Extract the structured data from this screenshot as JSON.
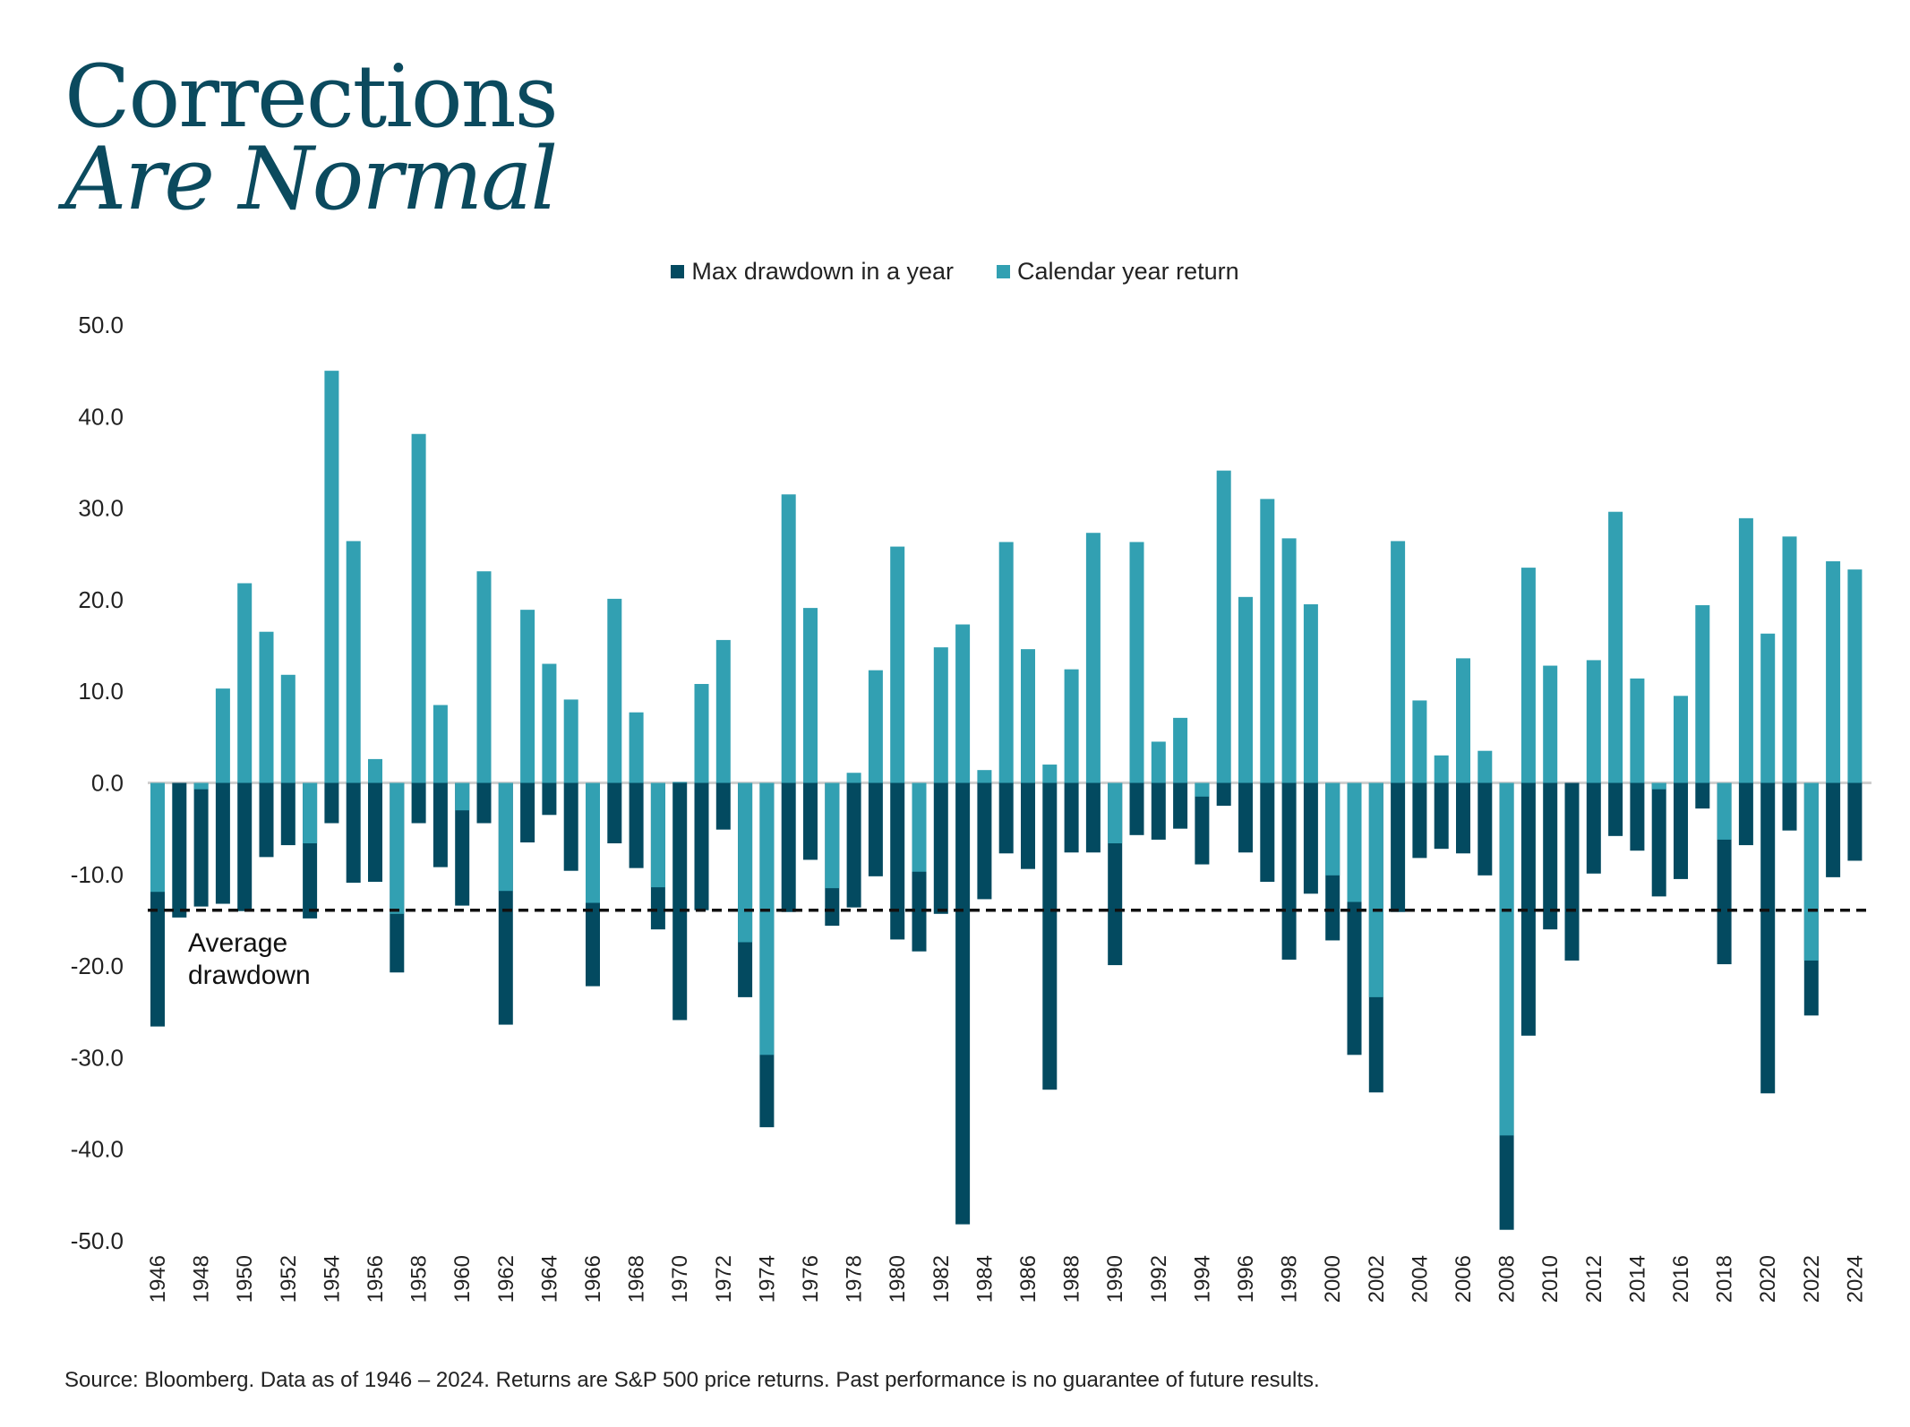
{
  "title": {
    "line1": "Corrections",
    "line2": "Are Normal"
  },
  "legend": {
    "drawdown_label": "Max drawdown in a year",
    "return_label": "Calendar year return"
  },
  "colors": {
    "drawdown": "#034a60",
    "return": "#32a0b2",
    "zero_line": "#cfcfcf",
    "avg_line": "#111111"
  },
  "annotation": {
    "line1": "Average",
    "line2": "drawdown"
  },
  "source": "Source: Bloomberg. Data as of 1946 – 2024.  Returns are S&P 500 price returns.    Past performance is no guarantee of future results.",
  "chart_data": {
    "type": "bar",
    "ylim": [
      -50,
      50
    ],
    "yticks": [
      "50.0",
      "40.0",
      "30.0",
      "20.0",
      "10.0",
      "0.0",
      "-10.0",
      "-20.0",
      "-30.0",
      "-40.0",
      "-50.0"
    ],
    "average_drawdown": -13.9,
    "x": [
      1946,
      1947,
      1948,
      1949,
      1950,
      1951,
      1952,
      1953,
      1954,
      1955,
      1956,
      1957,
      1958,
      1959,
      1960,
      1961,
      1962,
      1963,
      1964,
      1965,
      1966,
      1967,
      1968,
      1969,
      1970,
      1971,
      1972,
      1973,
      1974,
      1975,
      1976,
      1977,
      1978,
      1979,
      1980,
      1981,
      1982,
      1983,
      1984,
      1985,
      1986,
      1987,
      1988,
      1989,
      1990,
      1991,
      1992,
      1993,
      1994,
      1995,
      1996,
      1997,
      1998,
      1999,
      2000,
      2001,
      2002,
      2003,
      2004,
      2005,
      2006,
      2007,
      2008,
      2009,
      2010,
      2011,
      2012,
      2013,
      2014,
      2015,
      2016,
      2017,
      2018,
      2019,
      2020,
      2021,
      2022,
      2023,
      2024
    ],
    "xtick_labels": [
      "1946",
      "1948",
      "1950",
      "1952",
      "1954",
      "1956",
      "1958",
      "1960",
      "1962",
      "1964",
      "1966",
      "1968",
      "1970",
      "1972",
      "1974",
      "1976",
      "1978",
      "1980",
      "1982",
      "1984",
      "1986",
      "1988",
      "1990",
      "1992",
      "1994",
      "1996",
      "1998",
      "2000",
      "2002",
      "2004",
      "2006",
      "2008",
      "2010",
      "2012",
      "2014",
      "2016",
      "2018",
      "2020",
      "2022",
      "2024"
    ],
    "series": [
      {
        "name": "Max drawdown in a year",
        "values": [
          -26.6,
          -14.7,
          -13.5,
          -13.2,
          -14.0,
          -8.1,
          -6.8,
          -14.8,
          -4.4,
          -10.9,
          -10.8,
          -20.7,
          -4.4,
          -9.2,
          -13.4,
          -4.4,
          -26.4,
          -6.5,
          -3.5,
          -9.6,
          -22.2,
          -6.6,
          -9.3,
          -16.0,
          -25.9,
          -13.9,
          -5.1,
          -23.4,
          -37.6,
          -14.1,
          -8.4,
          -15.6,
          -13.6,
          -10.2,
          -17.1,
          -18.4,
          -14.3,
          -48.2,
          -12.7,
          -7.7,
          -9.4,
          -33.5,
          -7.6,
          -7.6,
          -19.9,
          -5.7,
          -6.2,
          -5.0,
          -8.9,
          -2.5,
          -7.6,
          -10.8,
          -19.3,
          -12.1,
          -17.2,
          -29.7,
          -33.8,
          -14.1,
          -8.2,
          -7.2,
          -7.7,
          -10.1,
          -48.8,
          -27.6,
          -16.0,
          -19.4,
          -9.9,
          -5.8,
          -7.4,
          -12.4,
          -10.5,
          -2.8,
          -19.8,
          -6.8,
          -33.9,
          -5.2,
          -25.4,
          -10.3,
          -8.5
        ]
      },
      {
        "name": "Calendar year return",
        "values": [
          -11.9,
          0.0,
          -0.7,
          10.3,
          21.8,
          16.5,
          11.8,
          -6.6,
          45.0,
          26.4,
          2.6,
          -14.3,
          38.1,
          8.5,
          -3.0,
          23.1,
          -11.8,
          18.9,
          13.0,
          9.1,
          -13.1,
          20.1,
          7.7,
          -11.4,
          0.1,
          10.8,
          15.6,
          -17.4,
          -29.7,
          31.5,
          19.1,
          -11.5,
          1.1,
          12.3,
          25.8,
          -9.7,
          14.8,
          17.3,
          1.4,
          26.3,
          14.6,
          2.0,
          12.4,
          27.3,
          -6.6,
          26.3,
          4.5,
          7.1,
          -1.5,
          34.1,
          20.3,
          31.0,
          26.7,
          19.5,
          -10.1,
          -13.0,
          -23.4,
          26.4,
          9.0,
          3.0,
          13.6,
          3.5,
          -38.5,
          23.5,
          12.8,
          0.0,
          13.4,
          29.6,
          11.4,
          -0.7,
          9.5,
          19.4,
          -6.2,
          28.9,
          16.3,
          26.9,
          -19.4,
          24.2,
          23.3
        ]
      }
    ]
  }
}
